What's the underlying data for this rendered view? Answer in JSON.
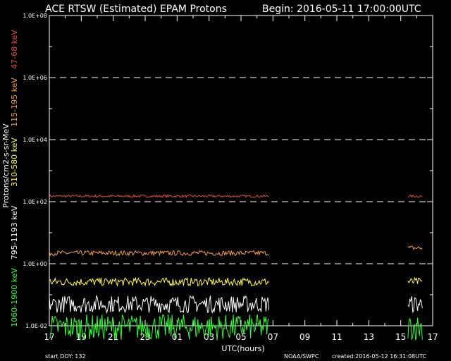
{
  "title": "ACE RTSW (Estimated) EPAM Protons",
  "begin": "Begin: 2016-05-11 17:00:00UTC",
  "footer": {
    "start_doy": "start DOY:  132",
    "credit": "NOAA/SWPC",
    "created": "created:2016-05-12 16:31:08UTC"
  },
  "chart_data": {
    "type": "line",
    "ylabel": "Protons/cm2-s-sr-MeV",
    "xlabel": "UTC(hours)",
    "yscale": "log",
    "ylim": [
      0.01,
      100000000
    ],
    "y_ticks": [
      "1.0E-02",
      "1.0E+00",
      "1.0E+02",
      "1.0E+04",
      "1.0E+06",
      "1.0E+08"
    ],
    "x_ticks": [
      "17",
      "19",
      "21",
      "23",
      "01",
      "03",
      "05",
      "07",
      "09",
      "11",
      "13",
      "15",
      "17"
    ],
    "xlim_hours": [
      0,
      24
    ],
    "grid_dashed_at": [
      1,
      100,
      10000,
      1000000
    ],
    "series": [
      {
        "name": "47-68 keV",
        "color": "#e05030",
        "level": 150,
        "jitter": 0.04,
        "segments": [
          [
            0,
            13.75
          ],
          [
            22.45,
            23.35
          ]
        ]
      },
      {
        "name": "115-195 keV",
        "color": "#f0a040",
        "level": 2.2,
        "jitter": 0.08,
        "segments": [
          [
            0,
            13.75
          ],
          [
            22.45,
            23.35
          ]
        ],
        "end_level": 3.2
      },
      {
        "name": "310-580 keV",
        "color": "#ffff40",
        "level": 0.26,
        "jitter": 0.13,
        "segments": [
          [
            0,
            13.75
          ],
          [
            22.45,
            23.35
          ]
        ]
      },
      {
        "name": "795-1193 keV",
        "color": "#ffffff",
        "level": 0.05,
        "jitter": 0.28,
        "segments": [
          [
            0,
            13.75
          ],
          [
            22.45,
            23.35
          ]
        ]
      },
      {
        "name": "1060-1900 keV",
        "color": "#30ff30",
        "level": 0.009,
        "jitter": 0.42,
        "segments": [
          [
            0,
            13.75
          ],
          [
            22.45,
            23.35
          ]
        ]
      }
    ]
  }
}
